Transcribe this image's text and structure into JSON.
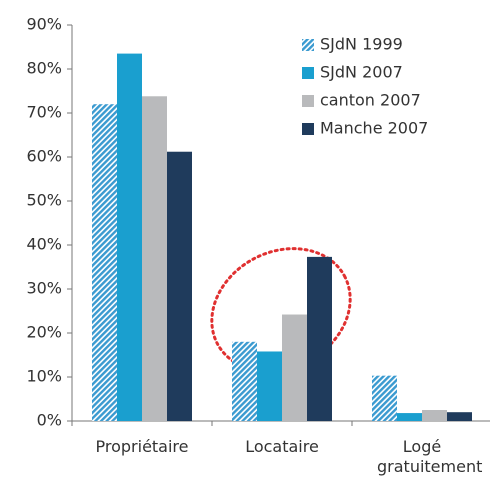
{
  "chart_data": {
    "type": "bar",
    "categories": [
      "Propriétaire",
      "Locataire",
      "Logé gratuitement"
    ],
    "series": [
      {
        "name": "SJdN 1999",
        "color": "#3a9ad0",
        "pattern": "hatch",
        "values": [
          72,
          18,
          10.3
        ]
      },
      {
        "name": "SJdN 2007",
        "color": "#1a9fcf",
        "values": [
          83.5,
          15.8,
          1.8
        ]
      },
      {
        "name": "canton 2007",
        "color": "#b9babc",
        "values": [
          73.8,
          24.2,
          2.5
        ]
      },
      {
        "name": "Manche 2007",
        "color": "#1f3b5c",
        "values": [
          61.2,
          37.3,
          2
        ]
      }
    ],
    "ylim": [
      0,
      90
    ],
    "yticks": [
      {
        "value": 0,
        "label": "0%"
      },
      {
        "value": 10,
        "label": "10%"
      },
      {
        "value": 20,
        "label": "20%"
      },
      {
        "value": 30,
        "label": "30%"
      },
      {
        "value": 40,
        "label": "40%"
      },
      {
        "value": 50,
        "label": "50%"
      },
      {
        "value": 60,
        "label": "60%"
      },
      {
        "value": 70,
        "label": "70%"
      },
      {
        "value": 80,
        "label": "80%"
      },
      {
        "value": 90,
        "label": "90%"
      }
    ],
    "grid": false,
    "legend": "top-right"
  }
}
